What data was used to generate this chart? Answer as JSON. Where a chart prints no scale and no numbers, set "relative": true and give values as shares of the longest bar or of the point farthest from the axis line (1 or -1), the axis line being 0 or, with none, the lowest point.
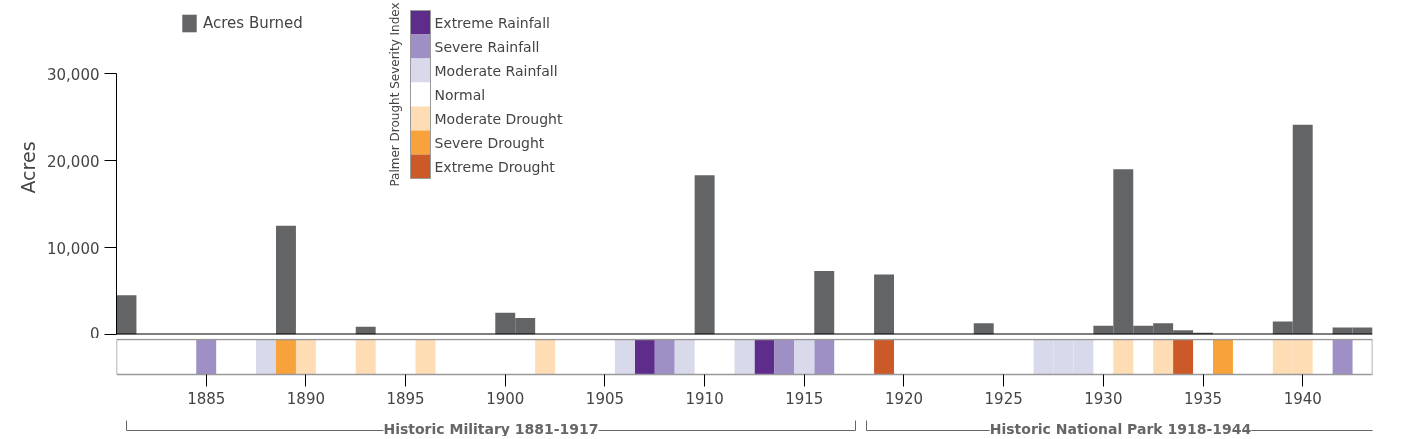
{
  "chart_data": [
    {
      "type": "bar",
      "ylabel": "Acres",
      "legend": "top left",
      "tick_labels": "y",
      "categories": [
        null,
        null,
        null,
        null,
        "1885",
        null,
        null,
        null,
        null,
        "1890",
        null,
        null,
        null,
        null,
        "1895",
        null,
        null,
        null,
        null,
        "1900",
        null,
        null,
        null,
        null,
        "1905",
        null,
        null,
        null,
        null,
        "1910",
        null,
        null,
        null,
        null,
        "1915",
        null,
        null,
        null,
        null,
        "1920",
        null,
        null,
        null,
        null,
        "1925",
        null,
        null,
        null,
        null,
        "1930",
        null,
        null,
        null,
        null,
        "1935",
        null,
        null,
        null,
        null,
        "1940",
        null,
        null,
        null
      ],
      "ylim": [
        0,
        30000
      ],
      "yticks": [
        0,
        {
          "value": 10000,
          "label": "10,000"
        },
        {
          "value": 20000,
          "label": "20,000"
        },
        {
          "value": 30000,
          "label": "30,000"
        }
      ],
      "series": [
        {
          "name": "Acres Burned",
          "color": "#636466",
          "values": [
            4500,
            0,
            0,
            0,
            0,
            0,
            0,
            0,
            12500,
            0,
            0,
            0,
            900,
            0,
            0,
            0,
            0,
            0,
            0,
            2500,
            1900,
            0,
            0,
            0,
            0,
            0,
            0,
            0,
            0,
            18300,
            0,
            0,
            0,
            0,
            0,
            7300,
            0,
            0,
            6900,
            0,
            0,
            0,
            0,
            1300,
            0,
            0,
            0,
            0,
            0,
            1000,
            19000,
            1000,
            1300,
            500,
            200,
            0,
            0,
            0,
            1500,
            24100,
            0,
            800,
            800
          ]
        }
      ]
    },
    {
      "type": "bar",
      "relative": true,
      "legend": "top",
      "legend_title": "Palmer Drought Severity Index",
      "categories": [
        null,
        null,
        null,
        null,
        "1885",
        null,
        null,
        null,
        null,
        "1890",
        null,
        null,
        null,
        null,
        "1895",
        null,
        null,
        null,
        null,
        "1900",
        null,
        null,
        null,
        null,
        "1905",
        null,
        null,
        null,
        null,
        "1910",
        null,
        null,
        null,
        null,
        "1915",
        null,
        null,
        null,
        null,
        "1920",
        null,
        null,
        null,
        null,
        "1925",
        null,
        null,
        null,
        null,
        "1930",
        null,
        null,
        null,
        null,
        "1935",
        null,
        null,
        null,
        null,
        "1940",
        null,
        null,
        null
      ],
      "series": [
        {
          "name": "Extreme Rainfall",
          "color": "#5e2d8c",
          "values": [
            null,
            null,
            null,
            null,
            null,
            null,
            null,
            null,
            null,
            null,
            null,
            null,
            null,
            null,
            null,
            null,
            null,
            null,
            null,
            null,
            null,
            null,
            null,
            null,
            null,
            null,
            1,
            null,
            null,
            null,
            null,
            null,
            1,
            null,
            null,
            null,
            null,
            null,
            null,
            null,
            null,
            null,
            null,
            null,
            null,
            null,
            null,
            null,
            null,
            null,
            null,
            null,
            null,
            null,
            null,
            null,
            null,
            null,
            null,
            null,
            null,
            null,
            null
          ]
        },
        {
          "name": "Severe Rainfall",
          "color": "#9e8fc4",
          "values": [
            null,
            null,
            null,
            null,
            1,
            null,
            null,
            null,
            null,
            null,
            null,
            null,
            null,
            null,
            null,
            null,
            null,
            null,
            null,
            null,
            null,
            null,
            null,
            null,
            null,
            null,
            null,
            1,
            null,
            null,
            null,
            null,
            null,
            1,
            null,
            1,
            null,
            null,
            null,
            null,
            null,
            null,
            null,
            null,
            null,
            null,
            null,
            null,
            null,
            null,
            null,
            null,
            null,
            null,
            null,
            null,
            null,
            null,
            null,
            null,
            null,
            1,
            null
          ]
        },
        {
          "name": "Moderate Rainfall",
          "color": "#d9d9ec",
          "values": [
            null,
            null,
            null,
            null,
            null,
            null,
            null,
            1,
            null,
            null,
            null,
            null,
            null,
            null,
            null,
            null,
            null,
            null,
            null,
            null,
            null,
            null,
            null,
            null,
            null,
            1,
            null,
            null,
            1,
            null,
            null,
            1,
            null,
            null,
            1,
            null,
            null,
            null,
            null,
            null,
            null,
            null,
            null,
            null,
            null,
            null,
            1,
            1,
            1,
            null,
            null,
            null,
            null,
            null,
            null,
            null,
            null,
            null,
            null,
            null,
            null,
            null,
            null
          ]
        },
        {
          "name": "Normal",
          "color": "#ffffff",
          "values": [
            null,
            null,
            null,
            null,
            null,
            null,
            null,
            null,
            null,
            null,
            null,
            null,
            null,
            null,
            null,
            null,
            null,
            null,
            null,
            null,
            null,
            null,
            null,
            null,
            null,
            null,
            null,
            null,
            null,
            null,
            null,
            null,
            null,
            null,
            null,
            null,
            null,
            null,
            null,
            null,
            null,
            null,
            null,
            null,
            null,
            null,
            null,
            null,
            null,
            null,
            null,
            null,
            null,
            null,
            null,
            null,
            null,
            null,
            null,
            null,
            null,
            null,
            null
          ]
        },
        {
          "name": "Moderate Drought",
          "color": "#fedcb4",
          "values": [
            null,
            null,
            null,
            null,
            null,
            null,
            null,
            null,
            null,
            1,
            null,
            null,
            1,
            null,
            null,
            1,
            null,
            null,
            null,
            null,
            null,
            1,
            null,
            null,
            null,
            null,
            null,
            null,
            null,
            null,
            null,
            null,
            null,
            null,
            null,
            null,
            null,
            null,
            null,
            null,
            null,
            null,
            null,
            null,
            null,
            null,
            null,
            null,
            null,
            null,
            1,
            null,
            1,
            null,
            null,
            null,
            null,
            null,
            1,
            1,
            null,
            null,
            null
          ]
        },
        {
          "name": "Severe Drought",
          "color": "#f7a23b",
          "values": [
            null,
            null,
            null,
            null,
            null,
            null,
            null,
            null,
            1,
            null,
            null,
            null,
            null,
            null,
            null,
            null,
            null,
            null,
            null,
            null,
            null,
            null,
            null,
            null,
            null,
            null,
            null,
            null,
            null,
            null,
            null,
            null,
            null,
            null,
            null,
            null,
            null,
            null,
            null,
            null,
            null,
            null,
            null,
            null,
            null,
            null,
            null,
            null,
            null,
            null,
            null,
            null,
            null,
            null,
            null,
            1,
            null,
            null,
            null,
            null,
            null,
            null,
            null
          ]
        },
        {
          "name": "Extreme Drought",
          "color": "#cb5a28",
          "values": [
            null,
            null,
            null,
            null,
            null,
            null,
            null,
            null,
            null,
            null,
            null,
            null,
            null,
            null,
            null,
            null,
            null,
            null,
            null,
            null,
            null,
            null,
            null,
            null,
            null,
            null,
            null,
            null,
            null,
            null,
            null,
            null,
            null,
            null,
            null,
            null,
            null,
            null,
            1,
            null,
            null,
            null,
            null,
            null,
            null,
            null,
            null,
            null,
            null,
            null,
            null,
            null,
            null,
            1,
            null,
            null,
            null,
            null,
            null,
            null,
            null,
            null,
            null
          ]
        }
      ],
      "annotations": [
        "Historic Military 1881-1917",
        "Historic National Park 1918-1944"
      ]
    }
  ]
}
